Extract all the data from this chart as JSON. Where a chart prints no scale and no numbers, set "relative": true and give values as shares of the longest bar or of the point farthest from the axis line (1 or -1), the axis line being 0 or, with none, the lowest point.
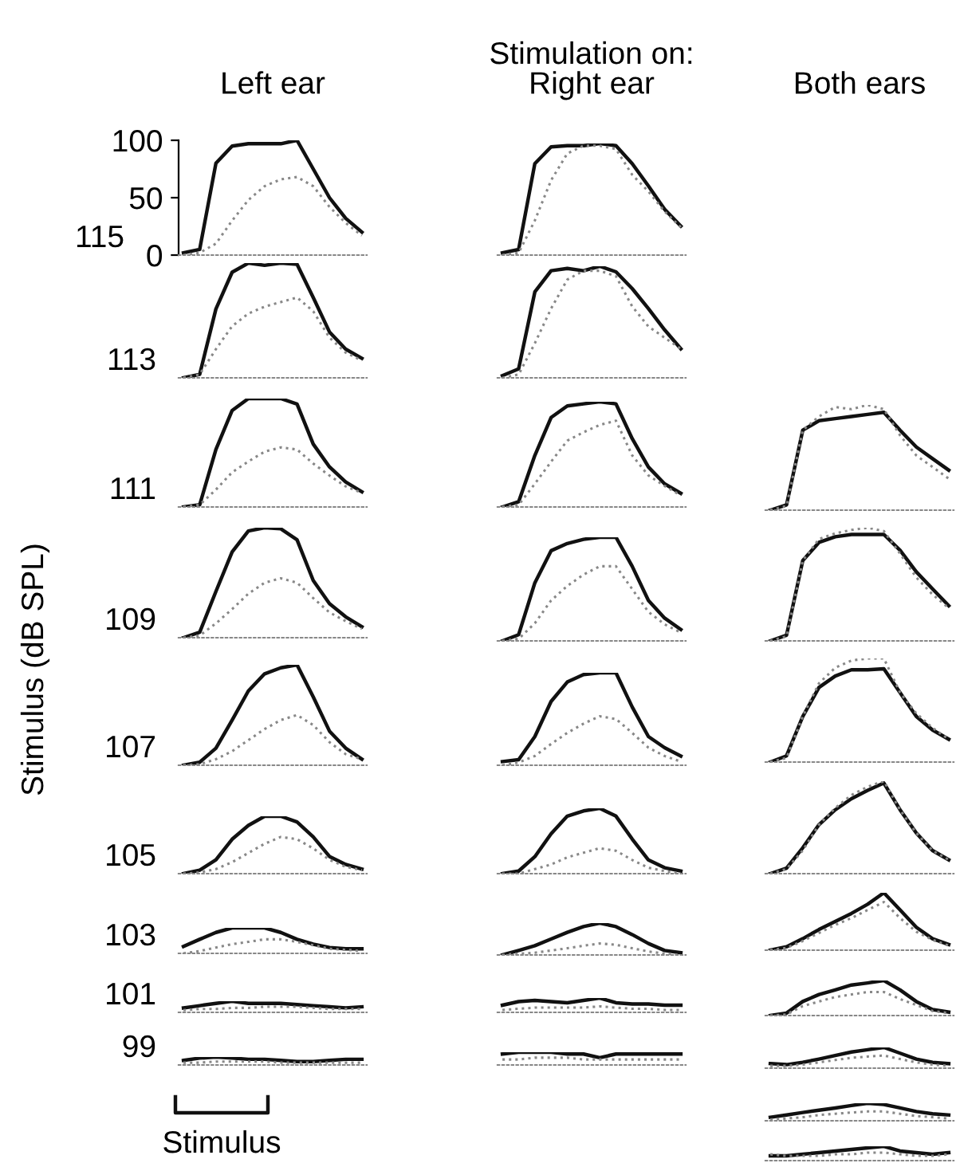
{
  "chart_data": [
    {
      "type": "line",
      "title": "Left ear",
      "ylabel": "115",
      "annotations": [
        "Stimulus (dB SPL)"
      ],
      "categories": [
        null,
        null,
        null,
        null,
        null,
        null,
        null,
        null,
        null,
        null,
        null,
        null
      ],
      "ylim": [
        0,
        100
      ],
      "yticks": [
        0,
        50,
        100
      ],
      "tick_labels": "y",
      "series": [
        {
          "color": "#111111",
          "line_style": "solid",
          "values": [
            2,
            5,
            80,
            95,
            97,
            97,
            97,
            100,
            75,
            50,
            32,
            20
          ]
        },
        {
          "color": "#888888",
          "line_style": "dotted",
          "values": [
            0,
            2,
            10,
            30,
            48,
            60,
            66,
            68,
            60,
            42,
            28,
            17
          ]
        }
      ]
    },
    {
      "type": "line",
      "relative": true,
      "title": "Right ear",
      "annotations": [
        "Stimulation on:"
      ],
      "categories": [
        null,
        null,
        null,
        null,
        null,
        null,
        null,
        null,
        null,
        null,
        null,
        null
      ],
      "series": [
        {
          "color": "#111111",
          "line_style": "solid",
          "values": [
            0.02,
            0.05,
            0.82,
            0.97,
            0.98,
            0.98,
            1,
            0.98,
            0.82,
            0.62,
            0.41,
            0.26
          ]
        },
        {
          "color": "#888888",
          "line_style": "dotted",
          "values": [
            0,
            0.02,
            0.31,
            0.67,
            0.91,
            0.98,
            0.98,
            0.95,
            0.72,
            0.57,
            0.39,
            0.25
          ]
        }
      ]
    },
    {
      "type": "line",
      "relative": true,
      "ylabel": "113",
      "categories": [
        null,
        null,
        null,
        null,
        null,
        null,
        null,
        null,
        null,
        null,
        null,
        null
      ],
      "series": [
        {
          "color": "#111111",
          "line_style": "solid",
          "values": [
            0,
            0.03,
            0.6,
            0.92,
            1,
            0.98,
            1,
            0.99,
            0.7,
            0.4,
            0.25,
            0.17
          ]
        },
        {
          "color": "#888888",
          "line_style": "dotted",
          "values": [
            0,
            0.03,
            0.25,
            0.45,
            0.56,
            0.62,
            0.66,
            0.7,
            0.58,
            0.35,
            0.22,
            0.15
          ]
        }
      ]
    },
    {
      "type": "line",
      "relative": true,
      "categories": [
        null,
        null,
        null,
        null,
        null,
        null,
        null,
        null,
        null,
        null,
        null,
        null
      ],
      "series": [
        {
          "color": "#111111",
          "line_style": "solid",
          "values": [
            0.02,
            0.08,
            0.77,
            0.96,
            0.98,
            0.96,
            1,
            0.95,
            0.8,
            0.62,
            0.43,
            0.26
          ]
        },
        {
          "color": "#888888",
          "line_style": "dotted",
          "values": [
            0,
            0.03,
            0.31,
            0.62,
            0.88,
            0.96,
            0.96,
            0.91,
            0.64,
            0.46,
            0.36,
            0.26
          ]
        }
      ]
    },
    {
      "type": "line",
      "relative": true,
      "ylabel": "111",
      "categories": [
        null,
        null,
        null,
        null,
        null,
        null,
        null,
        null,
        null,
        null,
        null,
        null
      ],
      "series": [
        {
          "color": "#111111",
          "line_style": "solid",
          "values": [
            0,
            0.02,
            0.53,
            0.89,
            1,
            1,
            1,
            0.95,
            0.58,
            0.37,
            0.23,
            0.14
          ]
        },
        {
          "color": "#888888",
          "line_style": "dotted",
          "values": [
            0,
            0.02,
            0.16,
            0.32,
            0.42,
            0.51,
            0.55,
            0.53,
            0.4,
            0.29,
            0.19,
            0.13
          ]
        }
      ]
    },
    {
      "type": "line",
      "relative": true,
      "categories": [
        null,
        null,
        null,
        null,
        null,
        null,
        null,
        null,
        null,
        null,
        null,
        null
      ],
      "series": [
        {
          "color": "#111111",
          "line_style": "solid",
          "values": [
            0,
            0.05,
            0.49,
            0.85,
            0.96,
            0.98,
            1,
            0.98,
            0.65,
            0.38,
            0.22,
            0.13
          ]
        },
        {
          "color": "#888888",
          "line_style": "dotted",
          "values": [
            0,
            0.02,
            0.22,
            0.43,
            0.63,
            0.71,
            0.78,
            0.82,
            0.49,
            0.3,
            0.2,
            0.11
          ]
        }
      ]
    },
    {
      "type": "line",
      "relative": true,
      "title": "Both ears",
      "categories": [
        null,
        null,
        null,
        null,
        null,
        null,
        null,
        null,
        null,
        null,
        null,
        null
      ],
      "series": [
        {
          "color": "#111111",
          "line_style": "solid",
          "values": [
            0,
            0.05,
            0.76,
            0.85,
            0.87,
            0.89,
            0.91,
            0.93,
            0.76,
            0.6,
            0.49,
            0.38
          ]
        },
        {
          "color": "#888888",
          "line_style": "dotted",
          "values": [
            0,
            0.04,
            0.76,
            0.89,
            0.98,
            0.96,
            1,
            0.96,
            0.71,
            0.52,
            0.41,
            0.3
          ]
        }
      ]
    },
    {
      "type": "line",
      "relative": true,
      "ylabel": "109",
      "categories": [
        null,
        null,
        null,
        null,
        null,
        null,
        null,
        null,
        null,
        null,
        null,
        null
      ],
      "series": [
        {
          "color": "#111111",
          "line_style": "solid",
          "values": [
            0,
            0.05,
            0.42,
            0.78,
            0.97,
            1,
            0.99,
            0.89,
            0.52,
            0.31,
            0.19,
            0.1
          ]
        },
        {
          "color": "#888888",
          "line_style": "dotted",
          "values": [
            0,
            0.02,
            0.13,
            0.26,
            0.4,
            0.5,
            0.54,
            0.5,
            0.36,
            0.23,
            0.15,
            0.08
          ]
        }
      ]
    },
    {
      "type": "line",
      "relative": true,
      "categories": [
        null,
        null,
        null,
        null,
        null,
        null,
        null,
        null,
        null,
        null,
        null,
        null
      ],
      "series": [
        {
          "color": "#111111",
          "line_style": "solid",
          "values": [
            0,
            0.06,
            0.56,
            0.87,
            0.94,
            0.98,
            1,
            1,
            0.72,
            0.39,
            0.22,
            0.11
          ]
        },
        {
          "color": "#888888",
          "line_style": "dotted",
          "values": [
            0,
            0.02,
            0.17,
            0.39,
            0.53,
            0.64,
            0.72,
            0.72,
            0.5,
            0.28,
            0.16,
            0.08
          ]
        }
      ]
    },
    {
      "type": "line",
      "relative": true,
      "categories": [
        null,
        null,
        null,
        null,
        null,
        null,
        null,
        null,
        null,
        null,
        null,
        null
      ],
      "series": [
        {
          "color": "#111111",
          "line_style": "solid",
          "values": [
            0,
            0.05,
            0.71,
            0.87,
            0.92,
            0.94,
            0.94,
            0.94,
            0.8,
            0.61,
            0.46,
            0.31
          ]
        },
        {
          "color": "#888888",
          "line_style": "dotted",
          "values": [
            0,
            0.04,
            0.71,
            0.9,
            0.95,
            0.98,
            1,
            0.97,
            0.77,
            0.56,
            0.41,
            0.29
          ]
        }
      ]
    },
    {
      "type": "line",
      "relative": true,
      "ylabel": "107",
      "categories": [
        null,
        null,
        null,
        null,
        null,
        null,
        null,
        null,
        null,
        null,
        null,
        null
      ],
      "series": [
        {
          "color": "#111111",
          "line_style": "solid",
          "values": [
            0,
            0.03,
            0.17,
            0.45,
            0.74,
            0.91,
            0.97,
            1,
            0.68,
            0.34,
            0.17,
            0.06
          ]
        },
        {
          "color": "#888888",
          "line_style": "dotted",
          "values": [
            0,
            0.01,
            0.06,
            0.14,
            0.25,
            0.36,
            0.45,
            0.5,
            0.4,
            0.23,
            0.11,
            0.06
          ]
        }
      ]
    },
    {
      "type": "line",
      "relative": true,
      "categories": [
        null,
        null,
        null,
        null,
        null,
        null,
        null,
        null,
        null,
        null,
        null,
        null
      ],
      "series": [
        {
          "color": "#111111",
          "line_style": "solid",
          "values": [
            0.04,
            0.06,
            0.31,
            0.69,
            0.9,
            0.98,
            1,
            1,
            0.63,
            0.31,
            0.19,
            0.1
          ]
        },
        {
          "color": "#888888",
          "line_style": "dotted",
          "values": [
            0,
            0.03,
            0.1,
            0.23,
            0.35,
            0.45,
            0.53,
            0.5,
            0.35,
            0.19,
            0.1,
            0.04
          ]
        }
      ]
    },
    {
      "type": "line",
      "relative": true,
      "categories": [
        null,
        null,
        null,
        null,
        null,
        null,
        null,
        null,
        null,
        null,
        null,
        null
      ],
      "series": [
        {
          "color": "#111111",
          "line_style": "solid",
          "values": [
            0,
            0.06,
            0.44,
            0.72,
            0.83,
            0.89,
            0.89,
            0.9,
            0.67,
            0.44,
            0.31,
            0.22
          ]
        },
        {
          "color": "#888888",
          "line_style": "dotted",
          "values": [
            0,
            0.04,
            0.44,
            0.76,
            0.91,
            0.98,
            1,
            1,
            0.67,
            0.47,
            0.33,
            0.22
          ]
        }
      ]
    },
    {
      "type": "line",
      "relative": true,
      "ylabel": "105",
      "categories": [
        null,
        null,
        null,
        null,
        null,
        null,
        null,
        null,
        null,
        null,
        null,
        null
      ],
      "series": [
        {
          "color": "#111111",
          "line_style": "solid",
          "values": [
            0,
            0.06,
            0.24,
            0.6,
            0.84,
            1,
            1,
            0.9,
            0.64,
            0.3,
            0.16,
            0.08
          ]
        },
        {
          "color": "#888888",
          "line_style": "dotted",
          "values": [
            0,
            0.02,
            0.08,
            0.2,
            0.36,
            0.52,
            0.64,
            0.6,
            0.44,
            0.24,
            0.12,
            0.06
          ]
        }
      ]
    },
    {
      "type": "line",
      "relative": true,
      "categories": [
        null,
        null,
        null,
        null,
        null,
        null,
        null,
        null,
        null,
        null,
        null,
        null
      ],
      "series": [
        {
          "color": "#111111",
          "line_style": "solid",
          "values": [
            0,
            0.04,
            0.26,
            0.61,
            0.88,
            0.96,
            1,
            0.88,
            0.53,
            0.21,
            0.09,
            0.04
          ]
        },
        {
          "color": "#888888",
          "line_style": "dotted",
          "values": [
            0,
            0,
            0.07,
            0.14,
            0.25,
            0.32,
            0.39,
            0.35,
            0.21,
            0.09,
            0.04,
            0
          ]
        }
      ]
    },
    {
      "type": "line",
      "relative": true,
      "categories": [
        null,
        null,
        null,
        null,
        null,
        null,
        null,
        null,
        null,
        null,
        null,
        null
      ],
      "series": [
        {
          "color": "#111111",
          "line_style": "solid",
          "values": [
            0,
            0.06,
            0.28,
            0.53,
            0.69,
            0.81,
            0.9,
            0.98,
            0.69,
            0.44,
            0.25,
            0.15
          ]
        },
        {
          "color": "#888888",
          "line_style": "dotted",
          "values": [
            0,
            0.05,
            0.25,
            0.53,
            0.71,
            0.85,
            0.94,
            1,
            0.69,
            0.44,
            0.25,
            0.15
          ]
        }
      ]
    },
    {
      "type": "line",
      "relative": true,
      "ylabel": "103",
      "categories": [
        null,
        null,
        null,
        null,
        null,
        null,
        null,
        null,
        null,
        null,
        null,
        null
      ],
      "series": [
        {
          "color": "#111111",
          "line_style": "solid",
          "values": [
            0.27,
            0.55,
            0.82,
            1,
            1,
            1,
            0.82,
            0.55,
            0.36,
            0.23,
            0.18,
            0.18
          ]
        },
        {
          "color": "#888888",
          "line_style": "dotted",
          "values": [
            0,
            0.09,
            0.23,
            0.36,
            0.45,
            0.55,
            0.55,
            0.45,
            0.32,
            0.18,
            0.14,
            0.09
          ]
        }
      ]
    },
    {
      "type": "line",
      "relative": true,
      "categories": [
        null,
        null,
        null,
        null,
        null,
        null,
        null,
        null,
        null,
        null,
        null,
        null
      ],
      "series": [
        {
          "color": "#111111",
          "line_style": "solid",
          "values": [
            0,
            0.14,
            0.29,
            0.5,
            0.71,
            0.89,
            1,
            0.89,
            0.64,
            0.36,
            0.14,
            0.07
          ]
        },
        {
          "color": "#888888",
          "line_style": "dotted",
          "values": [
            0,
            0.04,
            0.07,
            0.14,
            0.21,
            0.29,
            0.36,
            0.32,
            0.21,
            0.11,
            0.04,
            0
          ]
        }
      ]
    },
    {
      "type": "line",
      "relative": true,
      "categories": [
        null,
        null,
        null,
        null,
        null,
        null,
        null,
        null,
        null,
        null,
        null,
        null
      ],
      "series": [
        {
          "color": "#111111",
          "line_style": "solid",
          "values": [
            0,
            0.06,
            0.2,
            0.36,
            0.5,
            0.64,
            0.8,
            1,
            0.7,
            0.4,
            0.2,
            0.1
          ]
        },
        {
          "color": "#888888",
          "line_style": "dotted",
          "values": [
            0,
            0.04,
            0.16,
            0.3,
            0.44,
            0.56,
            0.7,
            0.84,
            0.56,
            0.32,
            0.18,
            0.08
          ]
        }
      ]
    },
    {
      "type": "line",
      "relative": true,
      "ylabel": "101",
      "categories": [
        null,
        null,
        null,
        null,
        null,
        null,
        null,
        null,
        null,
        null,
        null,
        null
      ],
      "series": [
        {
          "color": "#111111",
          "line_style": "solid",
          "values": [
            0.4,
            0.6,
            0.8,
            1,
            0.8,
            0.8,
            0.8,
            0.7,
            0.6,
            0.5,
            0.4,
            0.5
          ]
        },
        {
          "color": "#888888",
          "line_style": "dotted",
          "values": [
            0.2,
            0.3,
            0.3,
            0.4,
            0.4,
            0.5,
            0.5,
            0.5,
            0.4,
            0.3,
            0.3,
            0.3
          ]
        }
      ]
    },
    {
      "type": "line",
      "relative": true,
      "categories": [
        null,
        null,
        null,
        null,
        null,
        null,
        null,
        null,
        null,
        null,
        null,
        null
      ],
      "series": [
        {
          "color": "#111111",
          "line_style": "solid",
          "values": [
            0.5,
            0.75,
            0.83,
            0.75,
            0.67,
            0.83,
            1,
            0.67,
            0.58,
            0.58,
            0.5,
            0.5
          ]
        },
        {
          "color": "#888888",
          "line_style": "dotted",
          "values": [
            0.17,
            0.25,
            0.33,
            0.33,
            0.33,
            0.33,
            0.42,
            0.33,
            0.25,
            0.25,
            0.17,
            0.17
          ]
        }
      ]
    },
    {
      "type": "line",
      "relative": true,
      "categories": [
        null,
        null,
        null,
        null,
        null,
        null,
        null,
        null,
        null,
        null,
        null,
        null
      ],
      "series": [
        {
          "color": "#111111",
          "line_style": "solid",
          "values": [
            0,
            0.07,
            0.4,
            0.6,
            0.73,
            0.87,
            0.93,
            1,
            0.73,
            0.4,
            0.17,
            0.1
          ]
        },
        {
          "color": "#888888",
          "line_style": "dotted",
          "values": [
            0,
            0.03,
            0.27,
            0.4,
            0.53,
            0.6,
            0.67,
            0.67,
            0.47,
            0.3,
            0.13,
            0.07
          ]
        }
      ]
    },
    {
      "type": "line",
      "relative": true,
      "ylabel": "99",
      "annotations": [
        "Stimulus"
      ],
      "categories": [
        null,
        null,
        null,
        null,
        null,
        null,
        null,
        null,
        null,
        null,
        null,
        null
      ],
      "series": [
        {
          "color": "#111111",
          "line_style": "solid",
          "values": [
            0.57,
            0.86,
            1,
            0.86,
            0.71,
            0.71,
            0.57,
            0.43,
            0.43,
            0.57,
            0.71,
            0.71
          ]
        },
        {
          "color": "#888888",
          "line_style": "dotted",
          "values": [
            0.29,
            0.29,
            0.43,
            0.43,
            0.43,
            0.43,
            0.29,
            0.29,
            0.29,
            0.29,
            0.29,
            0.29
          ]
        }
      ]
    },
    {
      "type": "line",
      "relative": true,
      "categories": [
        null,
        null,
        null,
        null,
        null,
        null,
        null,
        null,
        null,
        null,
        null,
        null
      ],
      "series": [
        {
          "color": "#111111",
          "line_style": "solid",
          "values": [
            0.86,
            1,
            1,
            1,
            0.86,
            0.86,
            0.57,
            0.86,
            0.86,
            0.86,
            0.86,
            0.86
          ]
        },
        {
          "color": "#888888",
          "line_style": "dotted",
          "values": [
            0.43,
            0.43,
            0.57,
            0.57,
            0.57,
            0.43,
            0.43,
            0.43,
            0.43,
            0.43,
            0.43,
            0.43
          ]
        }
      ]
    },
    {
      "type": "line",
      "relative": true,
      "categories": [
        null,
        null,
        null,
        null,
        null,
        null,
        null,
        null,
        null,
        null,
        null,
        null
      ],
      "series": [
        {
          "color": "#111111",
          "line_style": "solid",
          "values": [
            0.22,
            0.17,
            0.28,
            0.44,
            0.61,
            0.78,
            0.89,
            1,
            0.72,
            0.44,
            0.28,
            0.22
          ]
        },
        {
          "color": "#888888",
          "line_style": "dotted",
          "values": [
            0.11,
            0.11,
            0.17,
            0.28,
            0.39,
            0.5,
            0.56,
            0.61,
            0.44,
            0.28,
            0.17,
            0.11
          ]
        }
      ]
    },
    {
      "type": "line",
      "relative": true,
      "categories": [
        null,
        null,
        null,
        null,
        null,
        null,
        null,
        null,
        null,
        null,
        null,
        null
      ],
      "series": [
        {
          "color": "#111111",
          "line_style": "solid",
          "values": [
            0.2,
            0.33,
            0.47,
            0.6,
            0.73,
            0.87,
            1,
            0.93,
            0.73,
            0.53,
            0.4,
            0.33
          ]
        },
        {
          "color": "#888888",
          "line_style": "dotted",
          "values": [
            0.07,
            0.13,
            0.2,
            0.33,
            0.4,
            0.47,
            0.53,
            0.53,
            0.4,
            0.27,
            0.2,
            0.13
          ]
        }
      ]
    },
    {
      "type": "line",
      "relative": true,
      "categories": [
        null,
        null,
        null,
        null,
        null,
        null,
        null,
        null,
        null,
        null,
        null,
        null
      ],
      "series": [
        {
          "color": "#111111",
          "line_style": "solid",
          "values": [
            0.33,
            0.33,
            0.44,
            0.56,
            0.67,
            0.78,
            0.89,
            1,
            0.67,
            0.56,
            0.44,
            0.56
          ]
        },
        {
          "color": "#888888",
          "line_style": "dotted",
          "values": [
            0.44,
            0.33,
            0.33,
            0.33,
            0.44,
            0.44,
            0.56,
            0.56,
            0.44,
            0.33,
            0.33,
            0.44
          ]
        }
      ]
    }
  ]
}
